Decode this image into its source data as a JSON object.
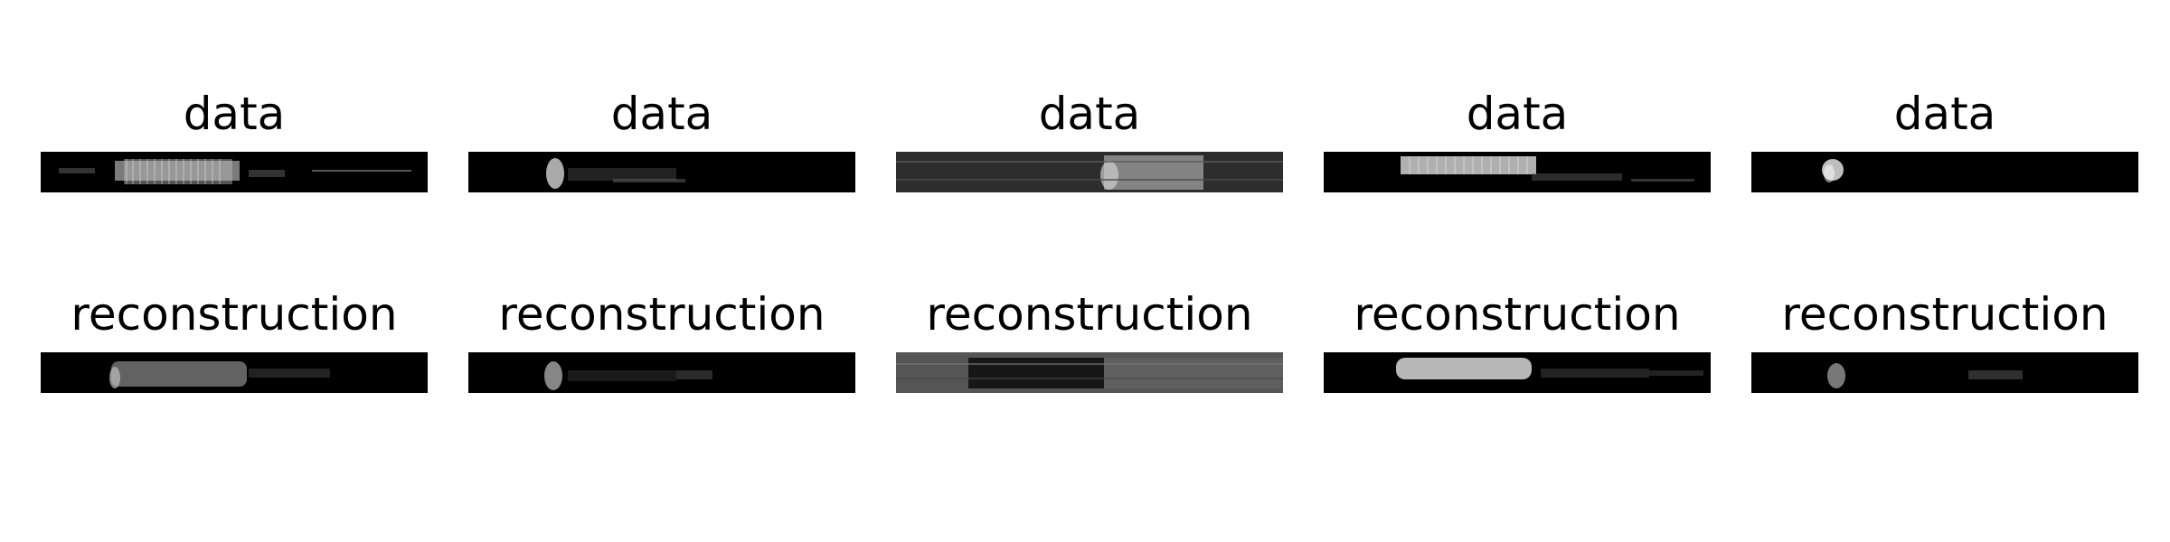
{
  "colors": {
    "background": "#ffffff",
    "image_background": "#000000",
    "text": "#000000"
  },
  "rows": [
    {
      "row": "data",
      "panels": [
        {
          "title": "data"
        },
        {
          "title": "data"
        },
        {
          "title": "data"
        },
        {
          "title": "data"
        },
        {
          "title": "data"
        }
      ]
    },
    {
      "row": "reconstruction",
      "panels": [
        {
          "title": "reconstruction"
        },
        {
          "title": "reconstruction"
        },
        {
          "title": "reconstruction"
        },
        {
          "title": "reconstruction"
        },
        {
          "title": "reconstruction"
        }
      ]
    }
  ]
}
